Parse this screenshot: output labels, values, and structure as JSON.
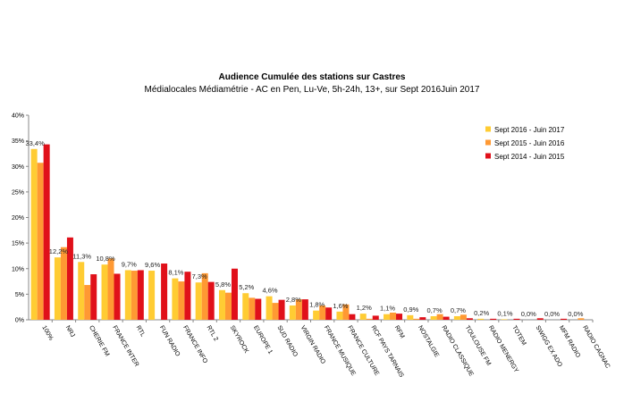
{
  "chart_data": {
    "type": "bar",
    "title": "Audience Cumulée des stations sur Castres",
    "subtitle": "Médialocales Médiamétrie - AC en Pen, Lu-Ve, 5h-24h, 13+, sur Sept 2016Juin 2017",
    "xlabel": "",
    "ylabel": "",
    "ylim": [
      0,
      40
    ],
    "yticks": [
      "0%",
      "5%",
      "10%",
      "15%",
      "20%",
      "25%",
      "30%",
      "35%",
      "40%"
    ],
    "grid": false,
    "legend_position": "right",
    "categories": [
      "100%",
      "NRJ",
      "CHERIE FM",
      "FRANCE INTER",
      "RTL",
      "FUN RADIO",
      "FRANCE INFO",
      "RTL 2",
      "SKYROCK",
      "EUROPE 1",
      "SUD RADIO",
      "VIRGIN RADIO",
      "FRANCE MUSIQUE",
      "FRANCE CULTURE",
      "RCF PAYS TARNAIS",
      "RFM",
      "NOSTALGIE",
      "RADIO CLASSIQUE",
      "TOULOUSE FM",
      "RADIO MENERGY",
      "TOTEM",
      "SWIGG EX ADO",
      "MFM RADIO",
      "RADIO CAGNAC"
    ],
    "series": [
      {
        "name": "Sept 2016 - Juin 2017",
        "color": "#FFCC33",
        "values": [
          33.4,
          12.2,
          11.3,
          10.8,
          9.7,
          9.6,
          8.1,
          7.3,
          5.8,
          5.2,
          4.6,
          2.8,
          1.8,
          1.6,
          1.2,
          1.1,
          0.9,
          0.7,
          0.7,
          0.2,
          0.1,
          0.0,
          0.0,
          0.0
        ]
      },
      {
        "name": "Sept 2015 - Juin 2016",
        "color": "#FF9933",
        "values": [
          30.7,
          14.2,
          6.8,
          12.0,
          9.6,
          0,
          7.5,
          9.1,
          5.3,
          4.3,
          3.3,
          4.0,
          2.8,
          3.0,
          0.2,
          1.4,
          0.2,
          1.1,
          1.0,
          0,
          0,
          0,
          0,
          0.3
        ]
      },
      {
        "name": "Sept 2014 - Juin 2015",
        "color": "#E0101A",
        "values": [
          34.3,
          16.1,
          8.9,
          9.0,
          9.7,
          11.0,
          9.4,
          7.4,
          10.0,
          4.1,
          3.9,
          4.0,
          2.4,
          1.1,
          0.8,
          1.2,
          0.5,
          0.6,
          0.3,
          0.2,
          0.2,
          0.3,
          0.2,
          0
        ]
      }
    ],
    "data_labels": [
      "33,4%",
      "12,2%",
      "11,3%",
      "10,8%",
      "9,7%",
      "9,6%",
      "8,1%",
      "7,3%",
      "5,8%",
      "5,2%",
      "4,6%",
      "2,8%",
      "1,8%",
      "1,6%",
      "1,2%",
      "1,1%",
      "0,9%",
      "0,7%",
      "0,7%",
      "0,2%",
      "0,1%",
      "0,0%",
      "0,0%",
      "0,0%"
    ]
  }
}
